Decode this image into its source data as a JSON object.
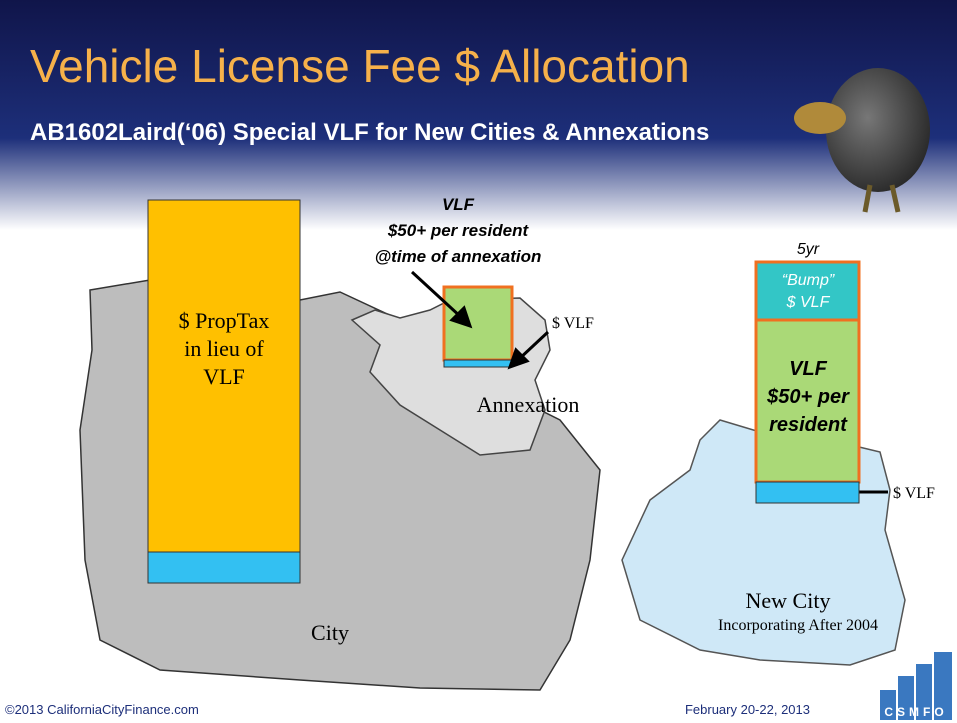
{
  "header": {
    "title": "Vehicle License Fee $ Allocation",
    "subtitle": "AB1602Laird(‘06) Special VLF for New Cities & Annexations"
  },
  "city": {
    "bar_label": [
      "$ PropTax",
      "in lieu of",
      "VLF"
    ],
    "name": "City"
  },
  "annexation": {
    "callout": [
      "VLF",
      "$50+ per resident",
      "@time of annexation"
    ],
    "vlf_label": "$ VLF",
    "name": "Annexation"
  },
  "new_city": {
    "period": "5yr",
    "bump": [
      "“Bump”",
      "$ VLF"
    ],
    "vlf": [
      "VLF",
      "$50+ per",
      "resident"
    ],
    "vlf_label": "$ VLF",
    "name": "New City",
    "subtitle": "Incorporating After 2004"
  },
  "footer": {
    "left": "©2013 CaliforniaCityFinance.com",
    "right": "February 20-22, 2013",
    "logo": "CSMFO"
  }
}
